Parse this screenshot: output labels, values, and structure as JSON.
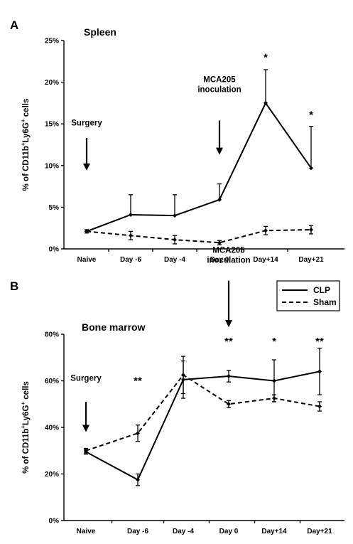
{
  "chart_data": [
    {
      "panel": "A",
      "type": "line",
      "title": "Spleen",
      "ylabel": "% of CD11b+Ly6G+ cells",
      "ylabel_parts": [
        "% of CD11b",
        "+",
        "Ly6G",
        "+",
        " cells"
      ],
      "xlabel": "",
      "categories": [
        "Naive",
        "Day -6",
        "Day -4",
        "Day 0",
        "Day+14",
        "Day+21"
      ],
      "ylim": [
        0,
        25
      ],
      "yticks": [
        0,
        5,
        10,
        15,
        20,
        25
      ],
      "ytick_labels": [
        "0%",
        "5%",
        "10%",
        "15%",
        "20%",
        "25%"
      ],
      "grid": false,
      "series": [
        {
          "name": "CLP",
          "style": "solid",
          "values": [
            2.1,
            4.1,
            4.0,
            5.9,
            17.5,
            9.7
          ],
          "errors": [
            0.2,
            2.4,
            2.5,
            1.9,
            4.0,
            5.0
          ],
          "error_dir": "up"
        },
        {
          "name": "Sham",
          "style": "dashed",
          "values": [
            2.1,
            1.6,
            1.1,
            0.75,
            2.2,
            2.3
          ],
          "errors": [
            0.2,
            0.5,
            0.5,
            0.25,
            0.5,
            0.5
          ],
          "error_dir": "both"
        }
      ],
      "significance": [
        {
          "category": "Day+14",
          "label": "*",
          "y": 23.0
        },
        {
          "category": "Day+21",
          "label": "*",
          "y": 16.1
        }
      ],
      "annotations": [
        {
          "text": [
            "Surgery"
          ],
          "category_index": 0,
          "text_y": 14.8,
          "arrow_from": 13.3,
          "arrow_to": 9.4
        },
        {
          "text": [
            "MCA205",
            "inoculation"
          ],
          "category_index": 3,
          "text_y": 20.0,
          "arrow_from": 15.4,
          "arrow_to": 11.3
        }
      ]
    },
    {
      "panel": "B",
      "type": "line",
      "title": "Bone marrow",
      "ylabel": "% of CD11b+Ly6G+ cells",
      "ylabel_parts": [
        "% of CD11b",
        "+",
        "Ly6G",
        "+",
        " cells"
      ],
      "xlabel": "",
      "categories": [
        "Naive",
        "Day -6",
        "Day -4",
        "Day 0",
        "Day+14",
        "Day+21"
      ],
      "ylim": [
        0,
        80
      ],
      "yticks": [
        0,
        20,
        40,
        60,
        80
      ],
      "ytick_labels": [
        "0%",
        "20%",
        "40%",
        "60%",
        "80%"
      ],
      "grid": false,
      "legend": {
        "position": "top-right",
        "entries": [
          "CLP",
          "Sham"
        ]
      },
      "series": [
        {
          "name": "CLP",
          "style": "solid",
          "values": [
            29.5,
            17.5,
            60.5,
            62.0,
            60.0,
            64.0
          ],
          "errors": [
            1.0,
            2.5,
            8.0,
            2.5,
            9.0,
            10.0
          ],
          "error_dir": "both"
        },
        {
          "name": "Sham",
          "style": "dashed",
          "values": [
            30.0,
            37.5,
            62.5,
            50.0,
            52.5,
            49.0
          ],
          "errors": [
            1.0,
            3.5,
            8.0,
            1.5,
            1.5,
            2.0
          ],
          "error_dir": "both"
        }
      ],
      "significance": [
        {
          "category": "Day -6",
          "label": "**",
          "y": 60.0
        },
        {
          "category": "Day 0",
          "label": "**",
          "y": 77.0
        },
        {
          "category": "Day+14",
          "label": "*",
          "y": 77.0
        },
        {
          "category": "Day+21",
          "label": "**",
          "y": 77.0
        }
      ],
      "annotations": [
        {
          "text": [
            "Surgery"
          ],
          "category_index": 0,
          "text_y": 60.0,
          "arrow_from": 51.0,
          "arrow_to": 38.0
        },
        {
          "text": [
            "MCA205",
            "inoculation"
          ],
          "category_index": 3,
          "text_y": 115.0,
          "arrow_from": 103.0,
          "arrow_to": 83.0
        }
      ]
    }
  ]
}
